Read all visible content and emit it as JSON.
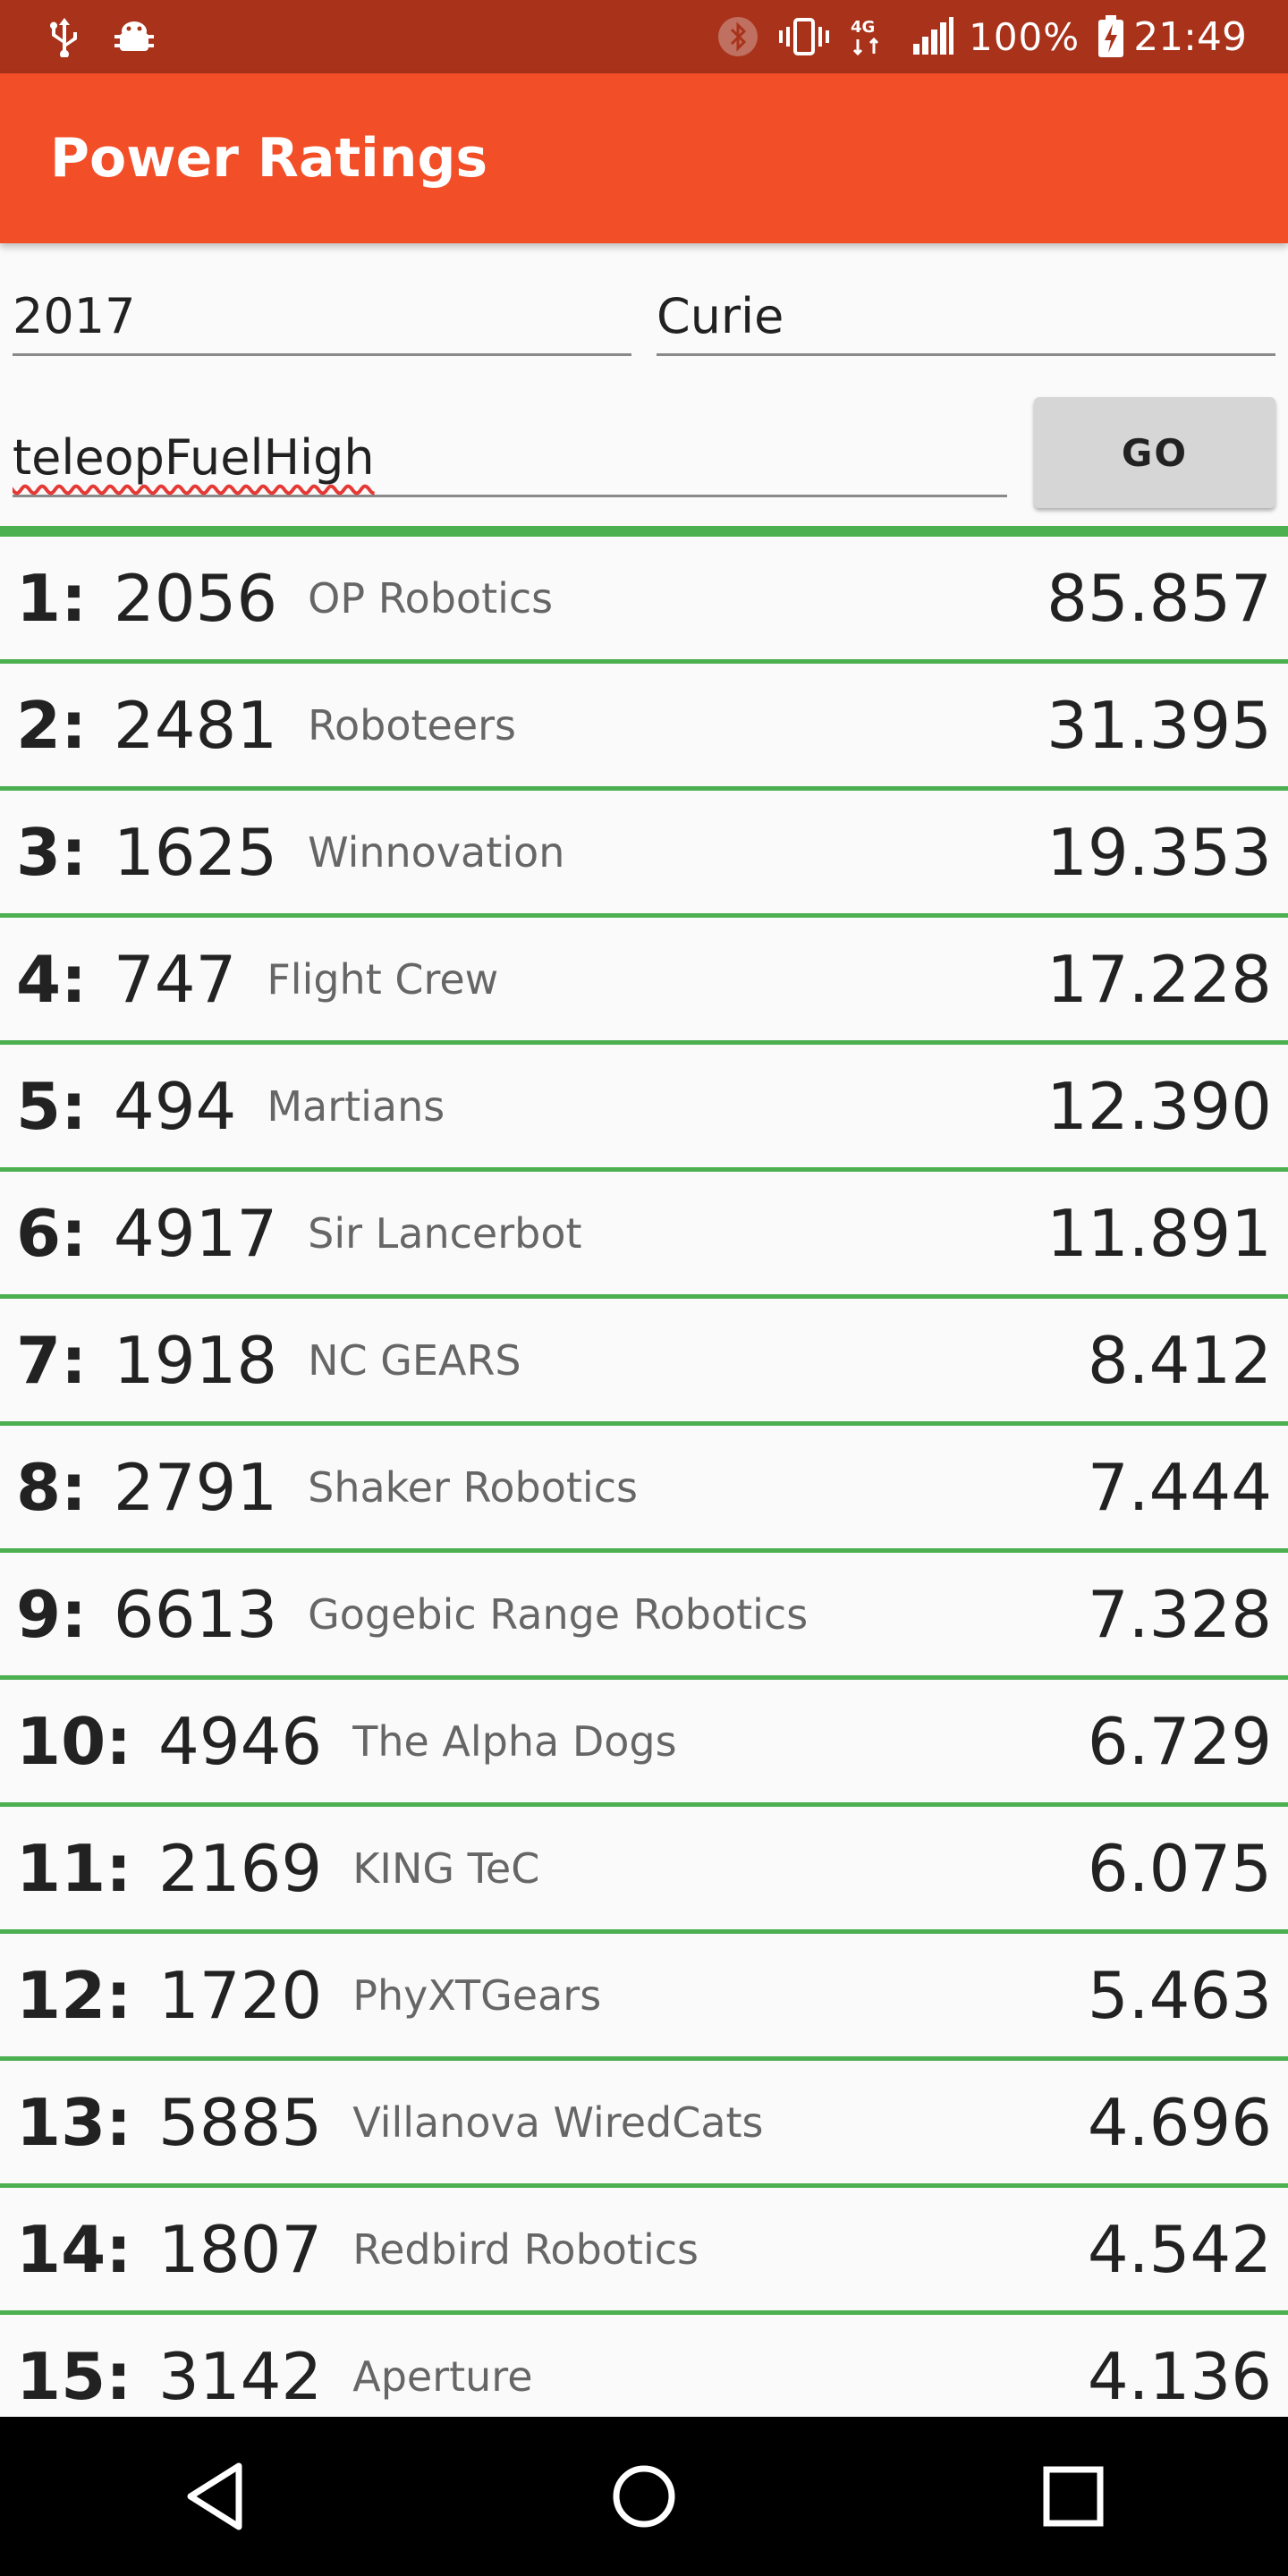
{
  "status_bar": {
    "battery_text": "100%",
    "time": "21:49",
    "network": "4G",
    "color": "#a8321a"
  },
  "app_bar": {
    "title": "Power Ratings",
    "color": "#f24e28"
  },
  "form": {
    "year_value": "2017",
    "event_value": "Curie",
    "stat_value": "teleopFuelHigh",
    "go_label": "GO"
  },
  "rankings": [
    {
      "rank": "1:",
      "team": "2056",
      "name": "OP Robotics",
      "score": "85.857"
    },
    {
      "rank": "2:",
      "team": "2481",
      "name": "Roboteers",
      "score": "31.395"
    },
    {
      "rank": "3:",
      "team": "1625",
      "name": "Winnovation",
      "score": "19.353"
    },
    {
      "rank": "4:",
      "team": "747",
      "name": "Flight Crew",
      "score": "17.228"
    },
    {
      "rank": "5:",
      "team": "494",
      "name": "Martians",
      "score": "12.390"
    },
    {
      "rank": "6:",
      "team": "4917",
      "name": "Sir Lancerbot",
      "score": "11.891"
    },
    {
      "rank": "7:",
      "team": "1918",
      "name": "NC GEARS",
      "score": "8.412"
    },
    {
      "rank": "8:",
      "team": "2791",
      "name": "Shaker Robotics",
      "score": "7.444"
    },
    {
      "rank": "9:",
      "team": "6613",
      "name": "Gogebic Range Robotics",
      "score": "7.328"
    },
    {
      "rank": "10:",
      "team": "4946",
      "name": "The Alpha Dogs",
      "score": "6.729"
    },
    {
      "rank": "11:",
      "team": "2169",
      "name": "KING TeC",
      "score": "6.075"
    },
    {
      "rank": "12:",
      "team": "1720",
      "name": "PhyXTGears",
      "score": "5.463"
    },
    {
      "rank": "13:",
      "team": "5885",
      "name": "Villanova WiredCats",
      "score": "4.696"
    },
    {
      "rank": "14:",
      "team": "1807",
      "name": "Redbird Robotics",
      "score": "4.542"
    },
    {
      "rank": "15:",
      "team": "3142",
      "name": "Aperture",
      "score": "4.136"
    }
  ],
  "divider_color": "#4caf50",
  "nav_bar": {
    "buttons": [
      "back-icon",
      "home-icon",
      "recents-icon"
    ]
  }
}
